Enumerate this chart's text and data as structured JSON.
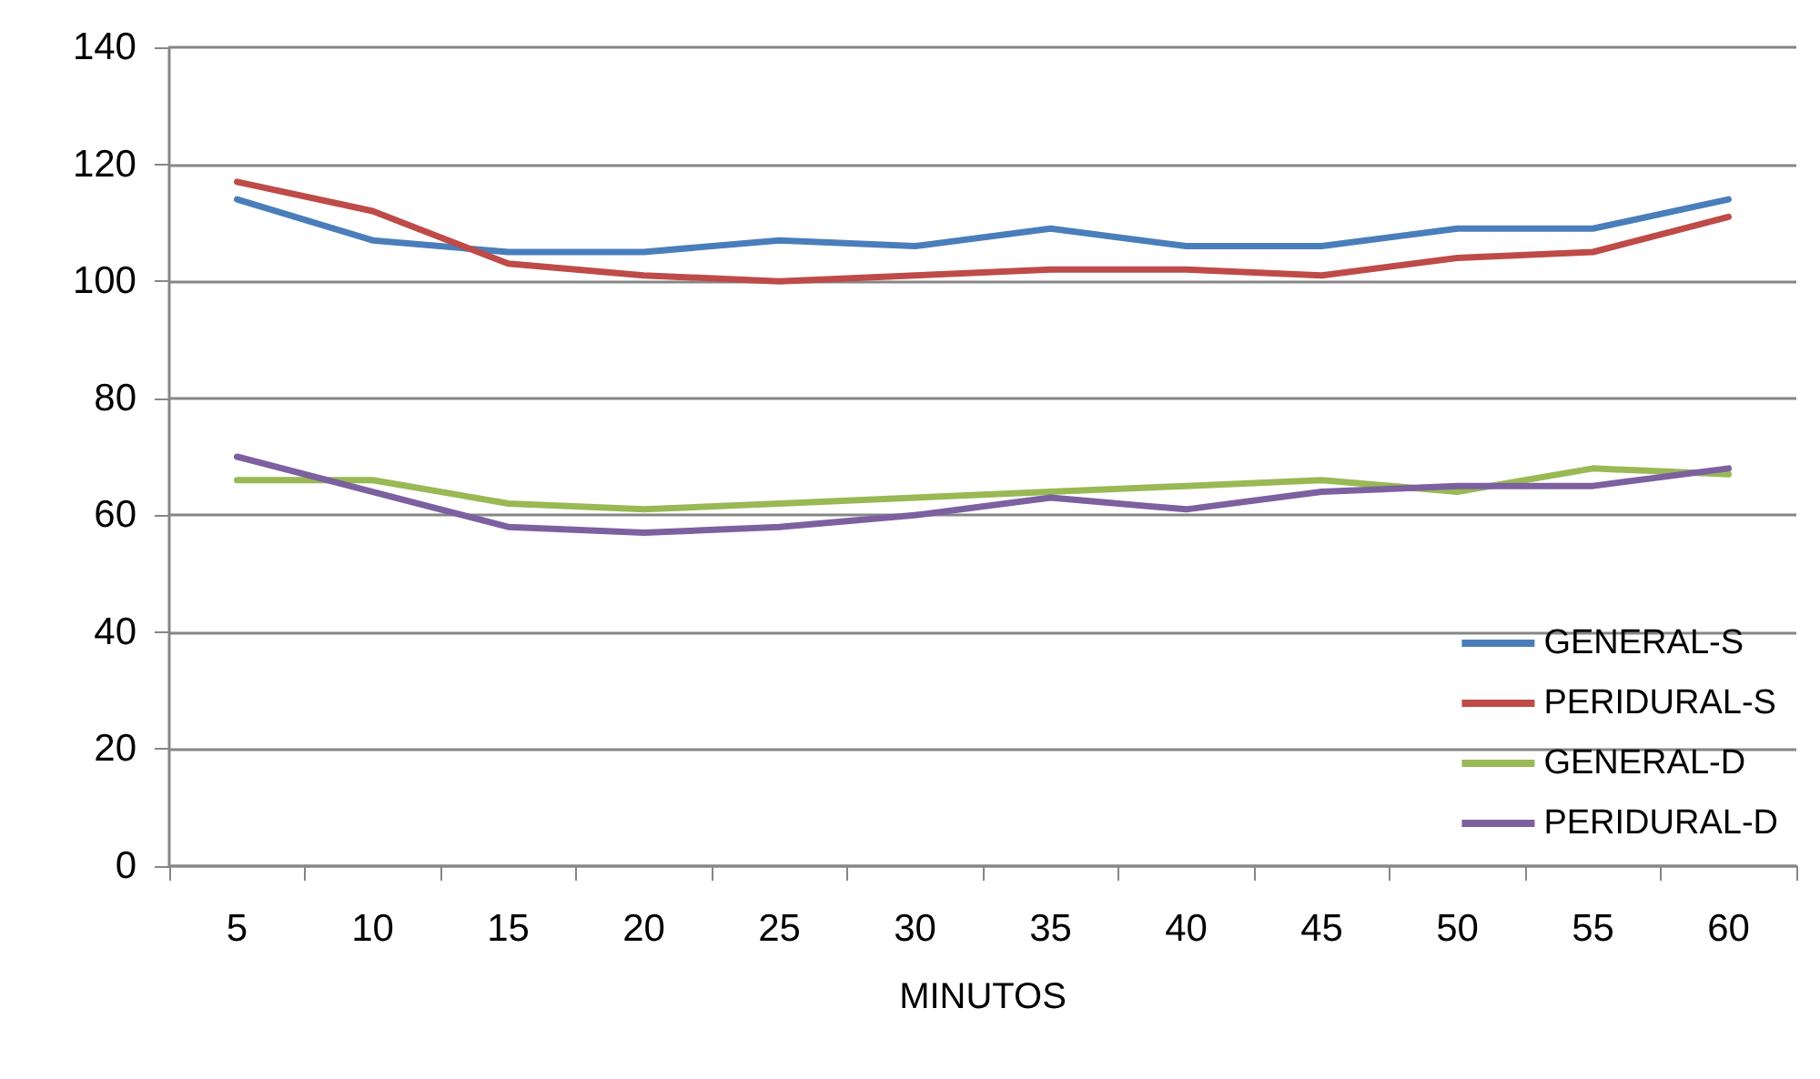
{
  "chart_data": {
    "type": "line",
    "xlabel": "MINUTOS",
    "categories": [
      "5",
      "10",
      "15",
      "20",
      "25",
      "30",
      "35",
      "40",
      "45",
      "50",
      "55",
      "60"
    ],
    "series": [
      {
        "name": "GENERAL-S",
        "color": "#4a7ebb",
        "values": [
          114,
          107,
          105,
          105,
          107,
          106,
          109,
          106,
          106,
          109,
          109,
          114
        ]
      },
      {
        "name": "PERIDURAL-S",
        "color": "#be4b48",
        "values": [
          117,
          112,
          103,
          101,
          100,
          101,
          102,
          102,
          101,
          104,
          105,
          111
        ]
      },
      {
        "name": "GENERAL-D",
        "color": "#98b954",
        "values": [
          66,
          66,
          62,
          61,
          62,
          63,
          64,
          65,
          66,
          64,
          68,
          67
        ]
      },
      {
        "name": "PERIDURAL-D",
        "color": "#7d60a0",
        "values": [
          70,
          64,
          58,
          57,
          58,
          60,
          63,
          61,
          64,
          65,
          65,
          68
        ]
      }
    ],
    "ylim": [
      0,
      140
    ],
    "yticks": [
      0,
      20,
      40,
      60,
      80,
      100,
      120,
      140
    ],
    "grid": "y",
    "legend": "bottom right",
    "marker": "none",
    "line_style": "solid"
  }
}
